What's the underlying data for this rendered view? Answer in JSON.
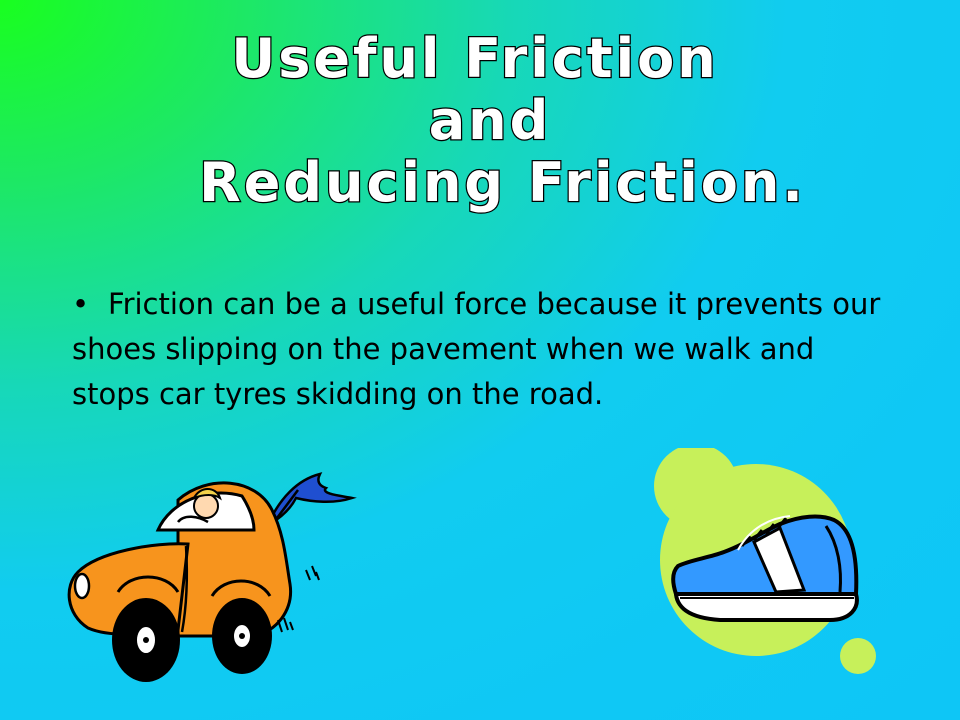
{
  "slide": {
    "title_lines": [
      "Useful Friction",
      "and",
      "Reducing Friction."
    ],
    "bullet_marker": "•",
    "bullet_text": "Friction can be a useful force because it prevents our shoes slipping on the pavement when we walk and stops car tyres skidding on the road."
  },
  "illustrations": {
    "car": "car-clipart",
    "shoe": "running-shoe-clipart"
  },
  "colors": {
    "gradient_corner": "#19ff1f",
    "gradient_main": "#0ec6f6",
    "car_body": "#f7941d",
    "shoe_blue": "#3399ff",
    "shoe_bubble": "#c7f05a"
  }
}
